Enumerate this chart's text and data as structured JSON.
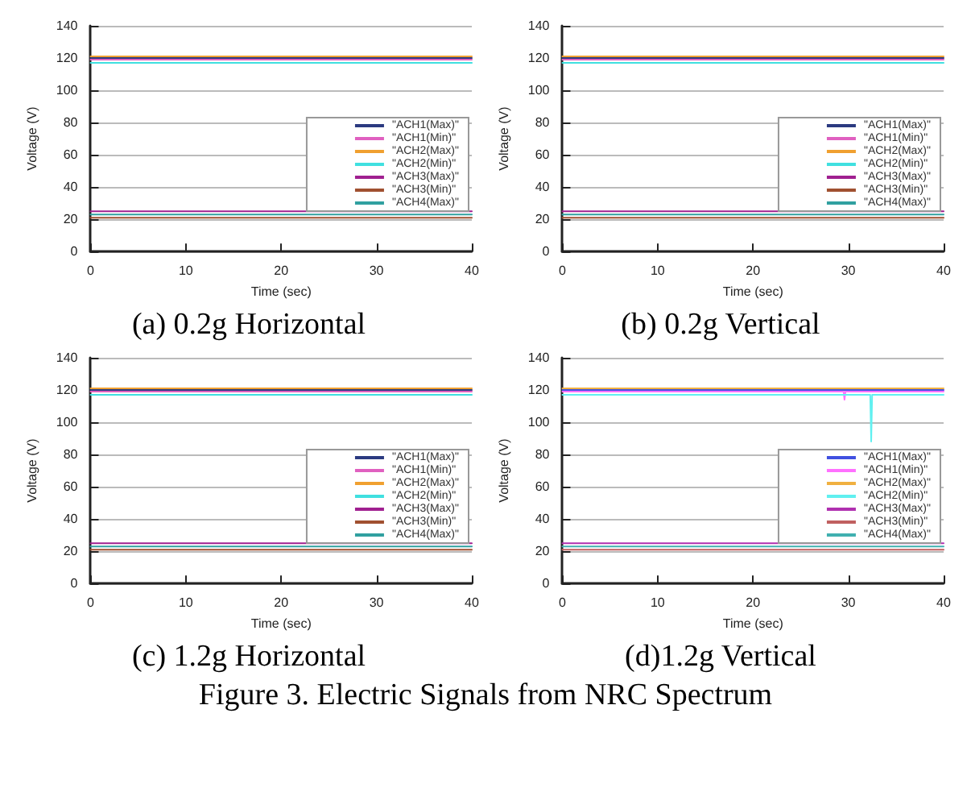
{
  "chart_data": [
    {
      "type": "line",
      "title": "(a)  0.2g Horizontal",
      "xlabel": "Time (sec)",
      "ylabel": "Voltage (V)",
      "xlim": [
        0,
        40
      ],
      "xticks": [
        0,
        10,
        20,
        30,
        40
      ],
      "ylim": [
        0,
        140
      ],
      "yticks": [
        0,
        20,
        40,
        60,
        80,
        100,
        120,
        140
      ],
      "grid": "y",
      "legend": "right",
      "marker": "none",
      "line_style": "solid",
      "series": [
        {
          "name": "\"ACH1(Max)\"",
          "color": "#2b3a80",
          "x": [
            0,
            40
          ],
          "values": [
            120,
            120
          ]
        },
        {
          "name": "\"ACH1(Min)\"",
          "color": "#e060c0",
          "x": [
            0,
            40
          ],
          "values": [
            119,
            119
          ]
        },
        {
          "name": "\"ACH2(Max)\"",
          "color": "#f0a030",
          "x": [
            0,
            40
          ],
          "values": [
            121,
            121
          ]
        },
        {
          "name": "\"ACH2(Min)\"",
          "color": "#40e0e0",
          "x": [
            0,
            40
          ],
          "values": [
            117,
            117
          ]
        },
        {
          "name": "\"ACH3(Max)\"",
          "color": "#a02090",
          "x": [
            0,
            40
          ],
          "values": [
            25,
            25
          ]
        },
        {
          "name": "\"ACH3(Min)\"",
          "color": "#a05030",
          "x": [
            0,
            40
          ],
          "values": [
            21,
            21
          ]
        },
        {
          "name": "\"ACH4(Max)\"",
          "color": "#30a0a0",
          "x": [
            0,
            40
          ],
          "values": [
            23,
            23
          ]
        }
      ]
    },
    {
      "type": "line",
      "title": "(b)  0.2g Vertical",
      "xlabel": "Time (sec)",
      "ylabel": "Voltage (V)",
      "xlim": [
        0,
        40
      ],
      "xticks": [
        0,
        10,
        20,
        30,
        40
      ],
      "ylim": [
        0,
        140
      ],
      "yticks": [
        0,
        20,
        40,
        60,
        80,
        100,
        120,
        140
      ],
      "grid": "y",
      "legend": "right",
      "marker": "none",
      "line_style": "solid",
      "series": [
        {
          "name": "\"ACH1(Max)\"",
          "color": "#2b3a80",
          "x": [
            0,
            40
          ],
          "values": [
            120,
            120
          ]
        },
        {
          "name": "\"ACH1(Min)\"",
          "color": "#e060c0",
          "x": [
            0,
            40
          ],
          "values": [
            119,
            119
          ]
        },
        {
          "name": "\"ACH2(Max)\"",
          "color": "#f0a030",
          "x": [
            0,
            40
          ],
          "values": [
            121,
            121
          ]
        },
        {
          "name": "\"ACH2(Min)\"",
          "color": "#40e0e0",
          "x": [
            0,
            40
          ],
          "values": [
            117,
            117
          ]
        },
        {
          "name": "\"ACH3(Max)\"",
          "color": "#a02090",
          "x": [
            0,
            40
          ],
          "values": [
            25,
            25
          ]
        },
        {
          "name": "\"ACH3(Min)\"",
          "color": "#a05030",
          "x": [
            0,
            40
          ],
          "values": [
            21,
            21
          ]
        },
        {
          "name": "\"ACH4(Max)\"",
          "color": "#30a0a0",
          "x": [
            0,
            40
          ],
          "values": [
            23,
            23
          ]
        }
      ]
    },
    {
      "type": "line",
      "title": "(c) 1.2g Horizontal",
      "xlabel": "Time (sec)",
      "ylabel": "Voltage (V)",
      "xlim": [
        0,
        40
      ],
      "xticks": [
        0,
        10,
        20,
        30,
        40
      ],
      "ylim": [
        0,
        140
      ],
      "yticks": [
        0,
        20,
        40,
        60,
        80,
        100,
        120,
        140
      ],
      "grid": "y",
      "legend": "right",
      "marker": "none",
      "line_style": "solid",
      "series": [
        {
          "name": "\"ACH1(Max)\"",
          "color": "#2b3a80",
          "x": [
            0,
            40
          ],
          "values": [
            120,
            120
          ]
        },
        {
          "name": "\"ACH1(Min)\"",
          "color": "#e060c0",
          "x": [
            0,
            40
          ],
          "values": [
            119,
            119
          ]
        },
        {
          "name": "\"ACH2(Max)\"",
          "color": "#f0a030",
          "x": [
            0,
            40
          ],
          "values": [
            121,
            121
          ]
        },
        {
          "name": "\"ACH2(Min)\"",
          "color": "#40e0e0",
          "x": [
            0,
            40
          ],
          "values": [
            117,
            117
          ]
        },
        {
          "name": "\"ACH3(Max)\"",
          "color": "#a02090",
          "x": [
            0,
            40
          ],
          "values": [
            25,
            25
          ]
        },
        {
          "name": "\"ACH3(Min)\"",
          "color": "#a05030",
          "x": [
            0,
            40
          ],
          "values": [
            21,
            21
          ]
        },
        {
          "name": "\"ACH4(Max)\"",
          "color": "#30a0a0",
          "x": [
            0,
            40
          ],
          "values": [
            23,
            23
          ]
        }
      ]
    },
    {
      "type": "line",
      "title": "(d)1.2g Vertical",
      "annotations": [
        "Figure 3. Electric Signals from NRC Spectrum"
      ],
      "xlabel": "Time (sec)",
      "ylabel": "Voltage (V)",
      "xlim": [
        0,
        40
      ],
      "xticks": [
        0,
        10,
        20,
        30,
        40
      ],
      "ylim": [
        0,
        140
      ],
      "yticks": [
        0,
        20,
        40,
        60,
        80,
        100,
        120,
        140
      ],
      "grid": "y",
      "legend": "right",
      "marker": "none",
      "line_style": "solid",
      "series": [
        {
          "name": "\"ACH1(Max)\"",
          "color": "#4050e0",
          "x": [
            0,
            40
          ],
          "values": [
            120,
            120
          ]
        },
        {
          "name": "\"ACH1(Min)\"",
          "color": "#ff70ff",
          "x": [
            0,
            29.5,
            29.6,
            29.7,
            40
          ],
          "values": [
            119,
            119,
            114,
            119,
            119
          ]
        },
        {
          "name": "\"ACH2(Max)\"",
          "color": "#f0b040",
          "x": [
            0,
            40
          ],
          "values": [
            121,
            121
          ]
        },
        {
          "name": "\"ACH2(Min)\"",
          "color": "#60f0f0",
          "x": [
            0,
            32.3,
            32.4,
            32.5,
            40
          ],
          "values": [
            117,
            117,
            88,
            117,
            117
          ]
        },
        {
          "name": "\"ACH3(Max)\"",
          "color": "#b030b0",
          "x": [
            0,
            40
          ],
          "values": [
            25,
            25
          ]
        },
        {
          "name": "\"ACH3(Min)\"",
          "color": "#c06060",
          "x": [
            0,
            40
          ],
          "values": [
            21,
            21
          ]
        },
        {
          "name": "\"ACH4(Max)\"",
          "color": "#40b0b0",
          "x": [
            0,
            40
          ],
          "values": [
            23,
            23
          ]
        }
      ]
    }
  ]
}
